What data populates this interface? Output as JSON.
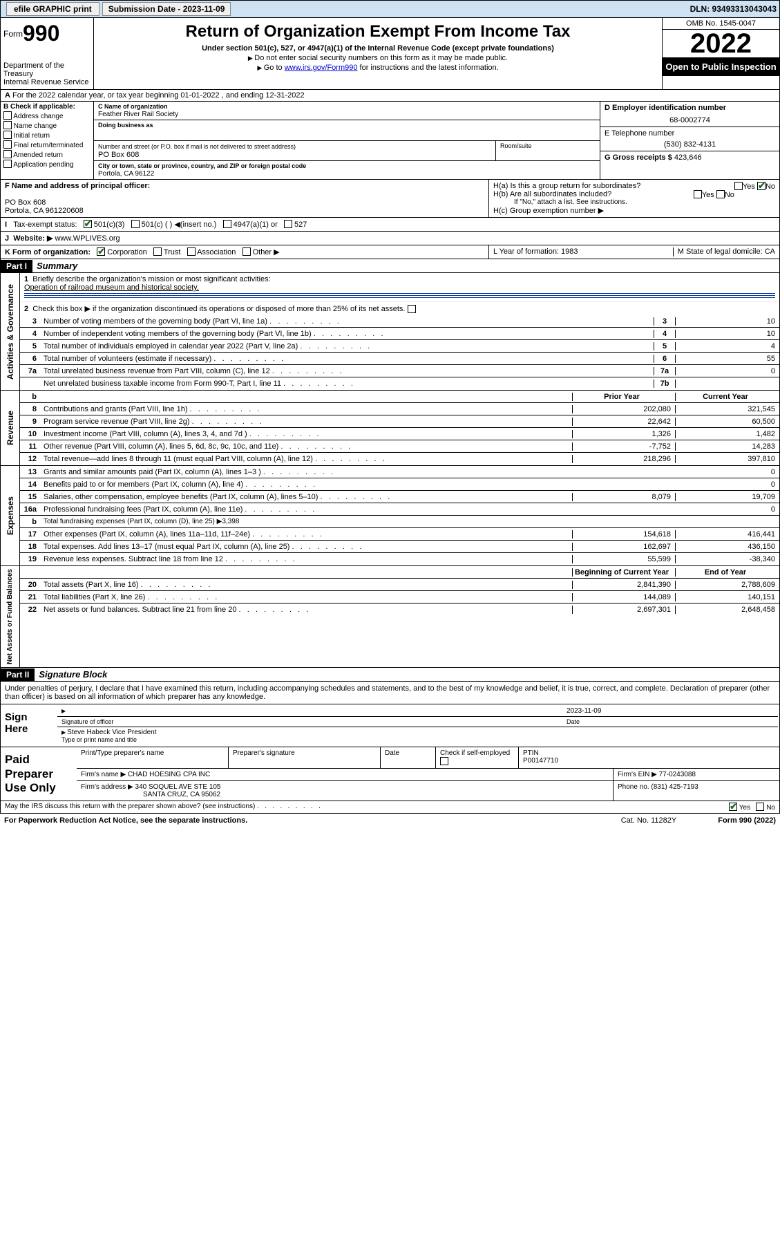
{
  "topbar": {
    "efile": "efile GRAPHIC print",
    "subdate_lbl": "Submission Date - 2023-11-09",
    "dln": "DLN: 93493313043043"
  },
  "header": {
    "form": "Form",
    "formno": "990",
    "title": "Return of Organization Exempt From Income Tax",
    "sub": "Under section 501(c), 527, or 4947(a)(1) of the Internal Revenue Code (except private foundations)",
    "l1": "Do not enter social security numbers on this form as it may be made public.",
    "l2a": "Go to ",
    "l2link": "www.irs.gov/Form990",
    "l2b": " for instructions and the latest information.",
    "dept": "Department of the Treasury",
    "irs": "Internal Revenue Service",
    "omb": "OMB No. 1545-0047",
    "year": "2022",
    "otp": "Open to Public Inspection"
  },
  "A": {
    "text": "For the 2022 calendar year, or tax year beginning 01-01-2022    , and ending 12-31-2022"
  },
  "B": {
    "lbl": "B Check if applicable:",
    "opts": [
      "Address change",
      "Name change",
      "Initial return",
      "Final return/terminated",
      "Amended return",
      "Application pending"
    ],
    "C": {
      "lbl": "C Name of organization",
      "name": "Feather River Rail Society",
      "dba_lbl": "Doing business as"
    },
    "addr": {
      "lbl": "Number and street (or P.O. box if mail is not delivered to street address)",
      "val": "PO Box 608",
      "room": "Room/suite",
      "city_lbl": "City or town, state or province, country, and ZIP or foreign postal code",
      "city": "Portola, CA  96122"
    },
    "D": {
      "lbl": "D Employer identification number",
      "val": "68-0002774"
    },
    "E": {
      "lbl": "E Telephone number",
      "val": "(530) 832-4131"
    },
    "G": {
      "lbl": "G Gross receipts $",
      "val": "423,646"
    }
  },
  "F": {
    "lbl": "F  Name and address of principal officer:",
    "l1": "PO Box 608",
    "l2": "Portola, CA  961220608"
  },
  "H": {
    "a": "H(a)  Is this a group return for subordinates?",
    "b": "H(b)  Are all subordinates included?",
    "bno": "If \"No,\" attach a list. See instructions.",
    "c": "H(c)  Group exemption number ▶"
  },
  "I": {
    "lbl": "Tax-exempt status:",
    "o1": "501(c)(3)",
    "o2": "501(c) (  ) ◀(insert no.)",
    "o3": "4947(a)(1) or",
    "o4": "527"
  },
  "J": {
    "lbl": "Website: ▶",
    "val": "www.WPLIVES.org"
  },
  "K": {
    "lbl": "K Form of organization:",
    "opts": [
      "Corporation",
      "Trust",
      "Association",
      "Other ▶"
    ]
  },
  "L": {
    "lbl": "L Year of formation: 1983"
  },
  "M": {
    "lbl": "M State of legal domicile: CA"
  },
  "part1": {
    "bar": "Part I",
    "title": "Summary",
    "q1": "Briefly describe the organization's mission or most significant activities:",
    "mission": "Operation of railroad museum and historical society.",
    "q2": "Check this box ▶         if the organization discontinued its operations or disposed of more than 25% of its net assets.",
    "lines_single": [
      {
        "n": "3",
        "d": "Number of voting members of the governing body (Part VI, line 1a)",
        "k": "3",
        "v": "10"
      },
      {
        "n": "4",
        "d": "Number of independent voting members of the governing body (Part VI, line 1b)",
        "k": "4",
        "v": "10"
      },
      {
        "n": "5",
        "d": "Total number of individuals employed in calendar year 2022 (Part V, line 2a)",
        "k": "5",
        "v": "4"
      },
      {
        "n": "6",
        "d": "Total number of volunteers (estimate if necessary)",
        "k": "6",
        "v": "55"
      },
      {
        "n": "7a",
        "d": "Total unrelated business revenue from Part VIII, column (C), line 12",
        "k": "7a",
        "v": "0"
      },
      {
        "n": "",
        "d": "Net unrelated business taxable income from Form 990-T, Part I, line 11",
        "k": "7b",
        "v": ""
      }
    ],
    "hdr": {
      "b": "b",
      "prior": "Prior Year",
      "curr": "Current Year"
    },
    "rev_side": "Revenue",
    "rev": [
      {
        "n": "8",
        "d": "Contributions and grants (Part VIII, line 1h)",
        "p": "202,080",
        "c": "321,545"
      },
      {
        "n": "9",
        "d": "Program service revenue (Part VIII, line 2g)",
        "p": "22,642",
        "c": "60,500"
      },
      {
        "n": "10",
        "d": "Investment income (Part VIII, column (A), lines 3, 4, and 7d )",
        "p": "1,326",
        "c": "1,482"
      },
      {
        "n": "11",
        "d": "Other revenue (Part VIII, column (A), lines 5, 6d, 8c, 9c, 10c, and 11e)",
        "p": "-7,752",
        "c": "14,283"
      },
      {
        "n": "12",
        "d": "Total revenue—add lines 8 through 11 (must equal Part VIII, column (A), line 12)",
        "p": "218,296",
        "c": "397,810"
      }
    ],
    "exp_side": "Expenses",
    "exp": [
      {
        "n": "13",
        "d": "Grants and similar amounts paid (Part IX, column (A), lines 1–3 )",
        "p": "",
        "c": "0"
      },
      {
        "n": "14",
        "d": "Benefits paid to or for members (Part IX, column (A), line 4)",
        "p": "",
        "c": "0"
      },
      {
        "n": "15",
        "d": "Salaries, other compensation, employee benefits (Part IX, column (A), lines 5–10)",
        "p": "8,079",
        "c": "19,709"
      },
      {
        "n": "16a",
        "d": "Professional fundraising fees (Part IX, column (A), line 11e)",
        "p": "",
        "c": "0"
      },
      {
        "n": "b",
        "d": "Total fundraising expenses (Part IX, column (D), line 25) ▶3,398",
        "p": "",
        "c": "",
        "noval": true
      },
      {
        "n": "17",
        "d": "Other expenses (Part IX, column (A), lines 11a–11d, 11f–24e)",
        "p": "154,618",
        "c": "416,441"
      },
      {
        "n": "18",
        "d": "Total expenses. Add lines 13–17 (must equal Part IX, column (A), line 25)",
        "p": "162,697",
        "c": "436,150"
      },
      {
        "n": "19",
        "d": "Revenue less expenses. Subtract line 18 from line 12",
        "p": "55,599",
        "c": "-38,340"
      }
    ],
    "na_side": "Net Assets or Fund Balances",
    "na_hdr": {
      "p": "Beginning of Current Year",
      "c": "End of Year"
    },
    "na": [
      {
        "n": "20",
        "d": "Total assets (Part X, line 16)",
        "p": "2,841,390",
        "c": "2,788,609"
      },
      {
        "n": "21",
        "d": "Total liabilities (Part X, line 26)",
        "p": "144,089",
        "c": "140,151"
      },
      {
        "n": "22",
        "d": "Net assets or fund balances. Subtract line 21 from line 20",
        "p": "2,697,301",
        "c": "2,648,458"
      }
    ]
  },
  "part2": {
    "bar": "Part II",
    "title": "Signature Block",
    "decl": "Under penalties of perjury, I declare that I have examined this return, including accompanying schedules and statements, and to the best of my knowledge and belief, it is true, correct, and complete. Declaration of preparer (other than officer) is based on all information of which preparer has any knowledge.",
    "sign": "Sign Here",
    "sigoff": "Signature of officer",
    "date": "Date",
    "dateval": "2023-11-09",
    "name": "Steve Habeck  Vice President",
    "name_lbl": "Type or print name and title",
    "paid": "Paid Preparer Use Only",
    "pt": "Print/Type preparer's name",
    "ps": "Preparer's signature",
    "pd": "Date",
    "se": "Check         if self-employed",
    "ptin_lbl": "PTIN",
    "ptin": "P00147710",
    "firm": "Firm's name    ▶",
    "firm_v": "CHAD HOESING CPA INC",
    "ein": "Firm's EIN ▶",
    "ein_v": "77-0243088",
    "fa": "Firm's address ▶",
    "fa_v": "340 SOQUEL AVE STE 105",
    "fa_v2": "SANTA CRUZ, CA  95062",
    "ph": "Phone no.",
    "ph_v": "(831) 425-7193",
    "may": "May the IRS discuss this return with the preparer shown above? (see instructions)",
    "yes": "Yes",
    "no": "No"
  },
  "footer": {
    "l": "For Paperwork Reduction Act Notice, see the separate instructions.",
    "m": "Cat. No. 11282Y",
    "r": "Form 990 (2022)"
  },
  "colors": {
    "topbar": "#cfe2f3",
    "link": "#0000cc",
    "check": "#1a6b1a",
    "hline": "#003399"
  }
}
